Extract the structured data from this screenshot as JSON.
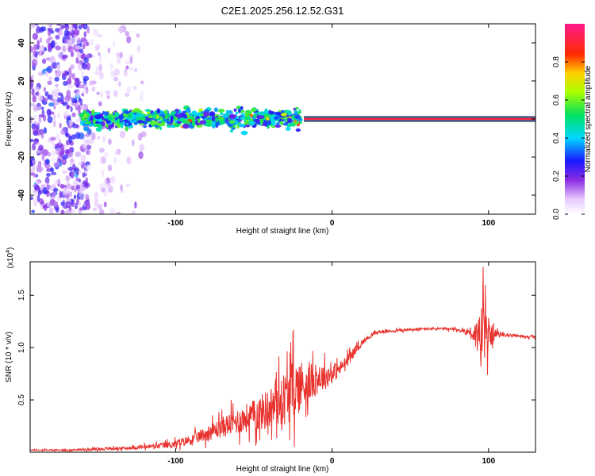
{
  "title": "C2E1.2025.256.12.52.G31",
  "chart_data": [
    {
      "type": "heatmap",
      "xlabel": "Height of straight line (km)",
      "ylabel": "Frequency (Hz)",
      "xlim": [
        -193,
        130
      ],
      "ylim": [
        -50,
        50
      ],
      "x_ticks": [
        -100,
        0,
        100
      ],
      "x_tick_labels": [
        "-100",
        "0",
        "100"
      ],
      "y_ticks": [
        -40,
        -20,
        0,
        20,
        40
      ],
      "y_tick_labels": [
        "-40",
        "-20",
        "0",
        "20",
        "40"
      ],
      "colorbar": {
        "label": "Normalized spectral amplitude",
        "range": [
          0,
          1
        ],
        "ticks": [
          0.0,
          0.2,
          0.4,
          0.6,
          0.8
        ],
        "tick_labels": [
          "0.0",
          "0.2",
          "0.4",
          "0.6",
          "0.8"
        ],
        "colormap": "white-purple-blue-cyan-green-yellow-red-pink"
      },
      "features": [
        {
          "description": "scattered noise",
          "x_range": [
            -193,
            -155
          ],
          "y_range": [
            -50,
            50
          ],
          "amplitude": 0.15
        },
        {
          "description": "sparse noise",
          "x_range": [
            -155,
            -120
          ],
          "y_range": [
            -50,
            50
          ],
          "amplitude": 0.05
        },
        {
          "description": "broad signal band",
          "x_range": [
            -160,
            -20
          ],
          "y_range": [
            -6,
            6
          ],
          "amplitude": 0.3
        },
        {
          "description": "narrow signal line",
          "x_range": [
            -18,
            130
          ],
          "y_range": [
            -1,
            1
          ],
          "amplitude": 0.85
        }
      ]
    },
    {
      "type": "line",
      "xlabel": "Height of straight line (km)",
      "ylabel": "SNR (10 * v/v)",
      "y_multiplier": "(x10",
      "y_multiplier_exp": "4",
      "y_multiplier_close": ")",
      "xlim": [
        -193,
        130
      ],
      "ylim": [
        0,
        1.82
      ],
      "x_ticks": [
        -100,
        0,
        100
      ],
      "x_tick_labels": [
        "-100",
        "0",
        "100"
      ],
      "y_ticks": [
        0.5,
        1.0,
        1.5
      ],
      "y_tick_labels": [
        "0.5",
        "1.0",
        "1.5"
      ],
      "color": "#e8322e",
      "series": [
        {
          "name": "SNR",
          "x": [
            -193,
            -170,
            -150,
            -130,
            -110,
            -100,
            -90,
            -80,
            -70,
            -60,
            -50,
            -40,
            -35,
            -30,
            -25,
            -20,
            -15,
            -10,
            -5,
            0,
            5,
            10,
            15,
            20,
            25,
            30,
            40,
            50,
            60,
            70,
            80,
            88,
            92,
            96,
            98,
            100,
            105,
            110,
            120,
            130
          ],
          "y": [
            0.02,
            0.02,
            0.03,
            0.04,
            0.06,
            0.08,
            0.12,
            0.18,
            0.24,
            0.3,
            0.35,
            0.42,
            0.48,
            0.52,
            0.6,
            0.64,
            0.66,
            0.7,
            0.72,
            0.75,
            0.8,
            0.88,
            0.98,
            1.06,
            1.12,
            1.15,
            1.16,
            1.17,
            1.18,
            1.18,
            1.17,
            1.15,
            1.12,
            1.12,
            1.1,
            1.12,
            1.13,
            1.12,
            1.11,
            1.1
          ],
          "noise": [
            0.01,
            0.01,
            0.02,
            0.02,
            0.04,
            0.05,
            0.07,
            0.1,
            0.14,
            0.18,
            0.22,
            0.28,
            0.32,
            0.38,
            0.42,
            0.36,
            0.26,
            0.22,
            0.18,
            0.14,
            0.1,
            0.08,
            0.06,
            0.04,
            0.03,
            0.02,
            0.02,
            0.02,
            0.02,
            0.02,
            0.02,
            0.06,
            0.2,
            0.5,
            0.45,
            0.2,
            0.05,
            0.02,
            0.02,
            0.02
          ]
        }
      ]
    }
  ]
}
